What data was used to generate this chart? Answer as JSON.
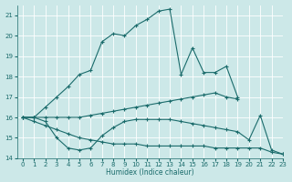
{
  "xlabel": "Humidex (Indice chaleur)",
  "bg_color": "#cce8e8",
  "grid_color": "#ffffff",
  "line_color": "#1a6b6b",
  "xlim": [
    -0.5,
    23
  ],
  "ylim": [
    14,
    21.5
  ],
  "yticks": [
    14,
    15,
    16,
    17,
    18,
    19,
    20,
    21
  ],
  "xticks": [
    0,
    1,
    2,
    3,
    4,
    5,
    6,
    7,
    8,
    9,
    10,
    11,
    12,
    13,
    14,
    15,
    16,
    17,
    18,
    19,
    20,
    21,
    22,
    23
  ],
  "series": [
    {
      "x": [
        0,
        1,
        2,
        3,
        4,
        5,
        6,
        7,
        8,
        9,
        10,
        11,
        12,
        13,
        14,
        15,
        16,
        17,
        18,
        19,
        20,
        21,
        22,
        23
      ],
      "y": [
        16,
        16,
        16.5,
        17.0,
        17.5,
        18.1,
        18.3,
        19.7,
        20.1,
        20.0,
        20.5,
        20.8,
        21.2,
        21.3,
        18.1,
        19.4,
        18.2,
        18.2,
        18.5,
        17.0,
        null,
        null,
        null,
        null
      ]
    },
    {
      "x": [
        0,
        1,
        2,
        3,
        4,
        5,
        6,
        7,
        8,
        9,
        10,
        11,
        12,
        13,
        14,
        15,
        16,
        17,
        18,
        19,
        20,
        21,
        22,
        23
      ],
      "y": [
        16,
        16,
        16,
        16,
        16,
        16,
        16.1,
        16.2,
        16.3,
        16.4,
        16.5,
        16.6,
        16.7,
        16.8,
        16.9,
        17.0,
        17.1,
        17.2,
        17.0,
        16.9,
        null,
        null,
        null,
        null
      ]
    },
    {
      "x": [
        0,
        1,
        2,
        3,
        4,
        5,
        6,
        7,
        8,
        9,
        10,
        11,
        12,
        13,
        14,
        15,
        16,
        17,
        18,
        19,
        20,
        21,
        22,
        23
      ],
      "y": [
        16,
        16,
        15.8,
        15.0,
        14.5,
        14.4,
        14.5,
        15.1,
        15.5,
        15.8,
        15.9,
        15.9,
        15.9,
        15.9,
        15.8,
        15.7,
        15.6,
        15.5,
        15.4,
        15.3,
        14.9,
        16.1,
        14.4,
        14.2
      ]
    },
    {
      "x": [
        0,
        1,
        2,
        3,
        4,
        5,
        6,
        7,
        8,
        9,
        10,
        11,
        12,
        13,
        14,
        15,
        16,
        17,
        18,
        19,
        20,
        21,
        22,
        23
      ],
      "y": [
        16,
        15.8,
        15.6,
        15.4,
        15.2,
        15.0,
        14.9,
        14.8,
        14.7,
        14.7,
        14.7,
        14.6,
        14.6,
        14.6,
        14.6,
        14.6,
        14.6,
        14.5,
        14.5,
        14.5,
        14.5,
        14.5,
        14.3,
        14.2
      ]
    }
  ]
}
